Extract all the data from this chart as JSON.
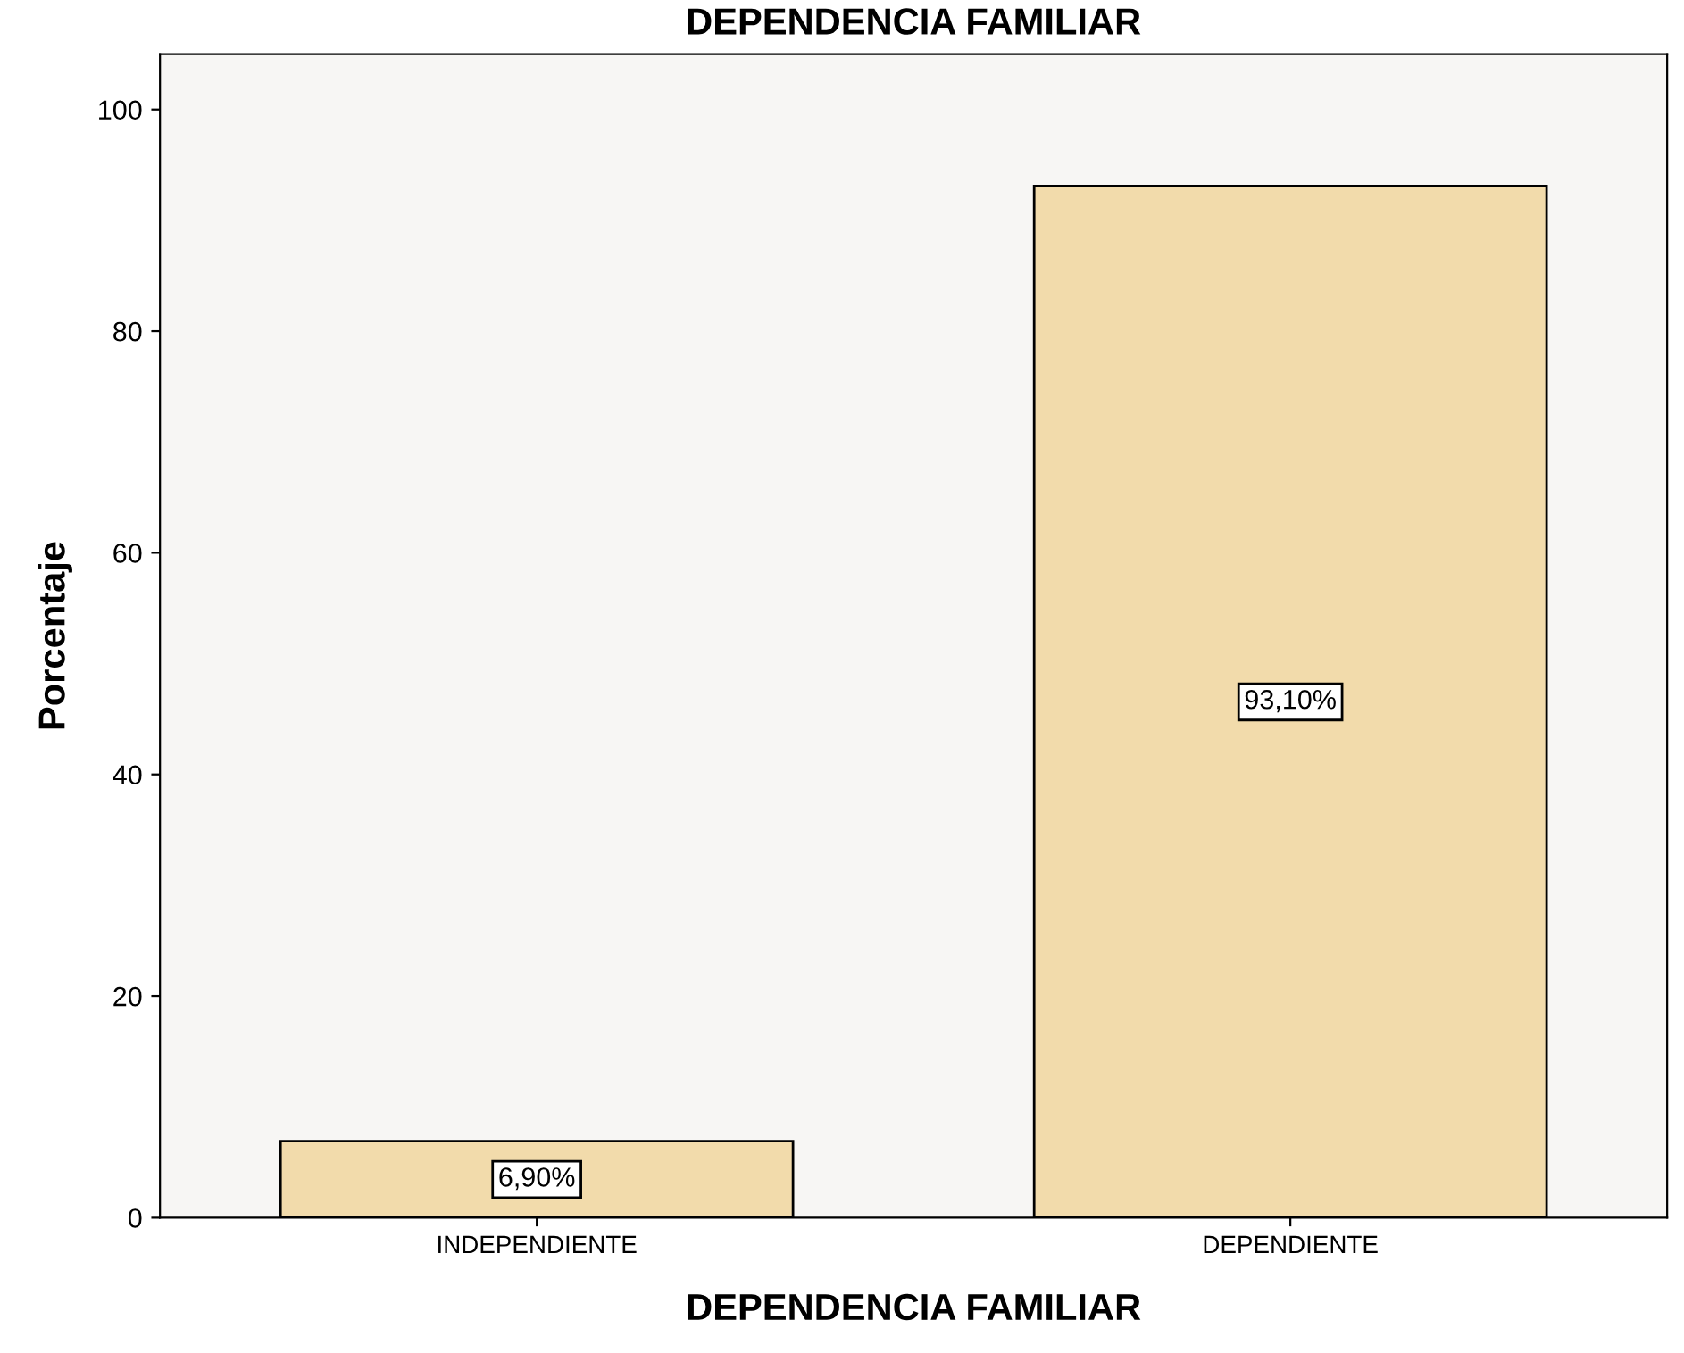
{
  "chart_data": {
    "type": "bar",
    "title": "DEPENDENCIA FAMILIAR",
    "xlabel": "DEPENDENCIA FAMILIAR",
    "ylabel": "Porcentaje",
    "categories": [
      "INDEPENDIENTE",
      "DEPENDIENTE"
    ],
    "values": [
      6.9,
      93.1
    ],
    "value_labels": [
      "6,90%",
      "93,10%"
    ],
    "color": "#f2dbab",
    "ylim": [
      0,
      105
    ],
    "yticks": [
      0,
      20,
      40,
      60,
      80,
      100
    ],
    "grid": false,
    "legend": false
  }
}
